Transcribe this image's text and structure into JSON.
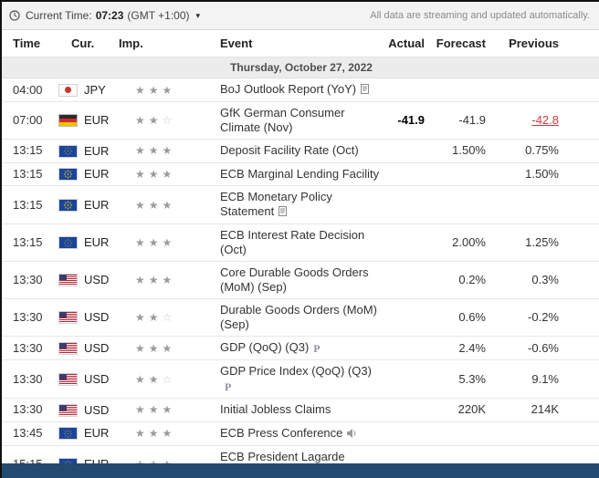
{
  "topbar": {
    "clock_label": "Current Time:",
    "time": "07:23",
    "timezone": "(GMT +1:00)",
    "streaming_note": "All data are streaming and updated automatically."
  },
  "table": {
    "headers": [
      "Time",
      "Cur.",
      "Imp.",
      "Event",
      "Actual",
      "Forecast",
      "Previous"
    ],
    "date_header": "Thursday, October 27, 2022",
    "rows": [
      {
        "time": "04:00",
        "currency": "JPY",
        "flag": "jp",
        "importance": 3,
        "event": "BoJ Outlook Report (YoY)",
        "icons": [
          "report-icon"
        ],
        "actual": "",
        "forecast": "",
        "previous": "",
        "previous_highlight": ""
      },
      {
        "time": "07:00",
        "currency": "EUR",
        "flag": "de",
        "importance": 2,
        "event": "GfK German Consumer Climate (Nov)",
        "icons": [],
        "actual": "-41.9",
        "forecast": "-41.9",
        "previous": "-42.8",
        "previous_highlight": "red"
      },
      {
        "time": "13:15",
        "currency": "EUR",
        "flag": "eu",
        "importance": 3,
        "event": "Deposit Facility Rate (Oct)",
        "icons": [],
        "actual": "",
        "forecast": "1.50%",
        "previous": "0.75%",
        "previous_highlight": ""
      },
      {
        "time": "13:15",
        "currency": "EUR",
        "flag": "eu",
        "importance": 3,
        "event": "ECB Marginal Lending Facility",
        "icons": [],
        "actual": "",
        "forecast": "",
        "previous": "1.50%",
        "previous_highlight": ""
      },
      {
        "time": "13:15",
        "currency": "EUR",
        "flag": "eu",
        "importance": 3,
        "event": "ECB Monetary Policy Statement",
        "icons": [
          "report-icon"
        ],
        "actual": "",
        "forecast": "",
        "previous": "",
        "previous_highlight": ""
      },
      {
        "time": "13:15",
        "currency": "EUR",
        "flag": "eu",
        "importance": 3,
        "event": "ECB Interest Rate Decision (Oct)",
        "icons": [],
        "actual": "",
        "forecast": "2.00%",
        "previous": "1.25%",
        "previous_highlight": ""
      },
      {
        "time": "13:30",
        "currency": "USD",
        "flag": "us",
        "importance": 3,
        "event": "Core Durable Goods Orders (MoM) (Sep)",
        "icons": [],
        "actual": "",
        "forecast": "0.2%",
        "previous": "0.3%",
        "previous_highlight": ""
      },
      {
        "time": "13:30",
        "currency": "USD",
        "flag": "us",
        "importance": 2,
        "event": "Durable Goods Orders (MoM) (Sep)",
        "icons": [],
        "actual": "",
        "forecast": "0.6%",
        "previous": "-0.2%",
        "previous_highlight": ""
      },
      {
        "time": "13:30",
        "currency": "USD",
        "flag": "us",
        "importance": 3,
        "event": "GDP (QoQ) (Q3)",
        "icons": [
          "preliminary-icon"
        ],
        "actual": "",
        "forecast": "2.4%",
        "previous": "-0.6%",
        "previous_highlight": ""
      },
      {
        "time": "13:30",
        "currency": "USD",
        "flag": "us",
        "importance": 2,
        "event": "GDP Price Index (QoQ) (Q3)",
        "icons": [
          "preliminary-icon"
        ],
        "actual": "",
        "forecast": "5.3%",
        "previous": "9.1%",
        "previous_highlight": ""
      },
      {
        "time": "13:30",
        "currency": "USD",
        "flag": "us",
        "importance": 3,
        "event": "Initial Jobless Claims",
        "icons": [],
        "actual": "",
        "forecast": "220K",
        "previous": "214K",
        "previous_highlight": ""
      },
      {
        "time": "13:45",
        "currency": "EUR",
        "flag": "eu",
        "importance": 3,
        "event": "ECB Press Conference",
        "icons": [
          "speech-icon"
        ],
        "actual": "",
        "forecast": "",
        "previous": "",
        "previous_highlight": ""
      },
      {
        "time": "15:15",
        "currency": "EUR",
        "flag": "eu",
        "importance": 3,
        "event": "ECB President Lagarde Speaks",
        "icons": [
          "speech-icon"
        ],
        "actual": "",
        "forecast": "",
        "previous": "",
        "previous_highlight": ""
      }
    ]
  },
  "colors": {
    "previous_revised_red": "#ce3b3b",
    "footer_bar_navy": "#234a70",
    "topbar_background": "#f3f3f3"
  }
}
